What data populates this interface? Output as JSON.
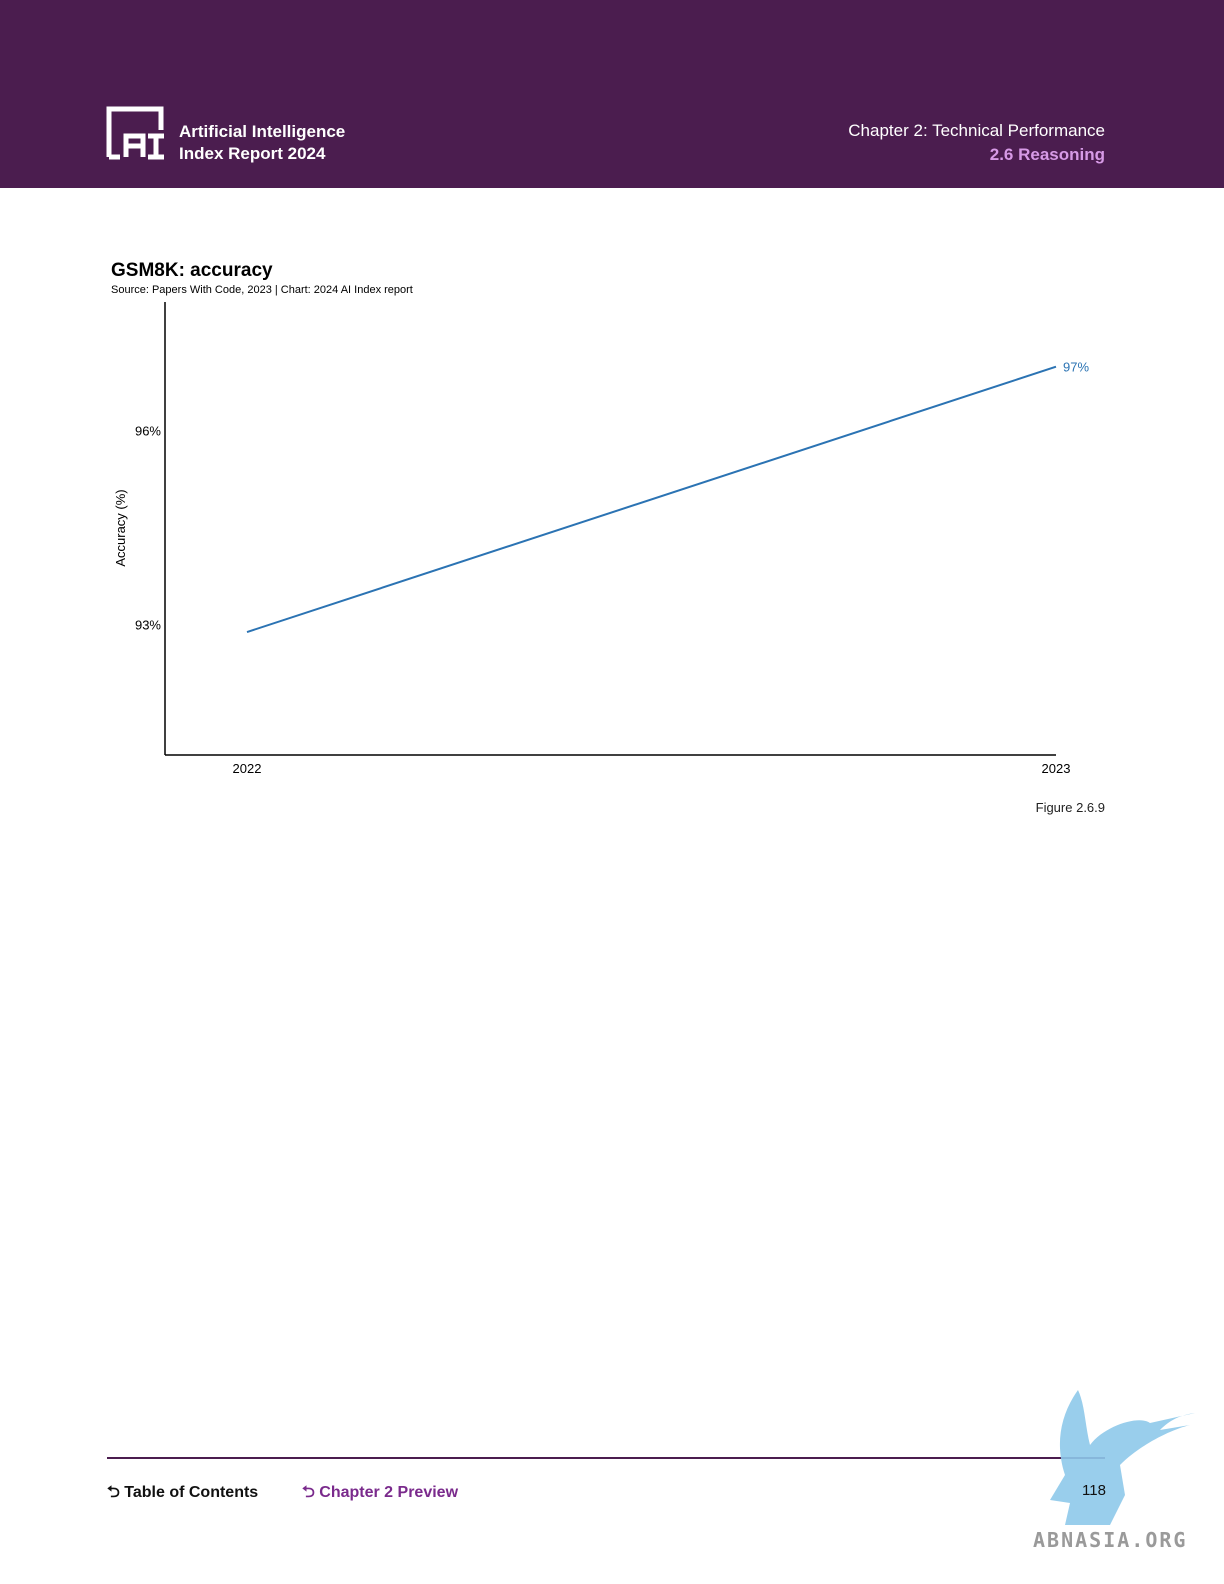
{
  "header": {
    "report_line1": "Artificial Intelligence",
    "report_line2": "Index Report 2024",
    "chapter": "Chapter 2: Technical Performance",
    "section": "2.6 Reasoning"
  },
  "chart_data": {
    "type": "line",
    "title": "GSM8K: accuracy",
    "subtitle": "Source: Papers With Code, 2023 | Chart: 2024 AI Index report",
    "xlabel": "",
    "ylabel": "Accuracy (%)",
    "x": [
      2022,
      2023
    ],
    "series": [
      {
        "values": [
          92.9,
          97.0
        ],
        "end_label": "97%",
        "color": "#2b73b3"
      }
    ],
    "yticks": [
      93,
      96
    ],
    "ytick_labels": [
      "93%",
      "96%"
    ],
    "xtick_labels": [
      "2022",
      "2023"
    ],
    "ylim": [
      91,
      98
    ],
    "grid": false
  },
  "figure_caption": "Figure 2.6.9",
  "footer": {
    "toc_label": "Table of Contents",
    "preview_label": "Chapter 2 Preview",
    "page_number": "118"
  },
  "watermark_text": "ABNASIA.ORG"
}
